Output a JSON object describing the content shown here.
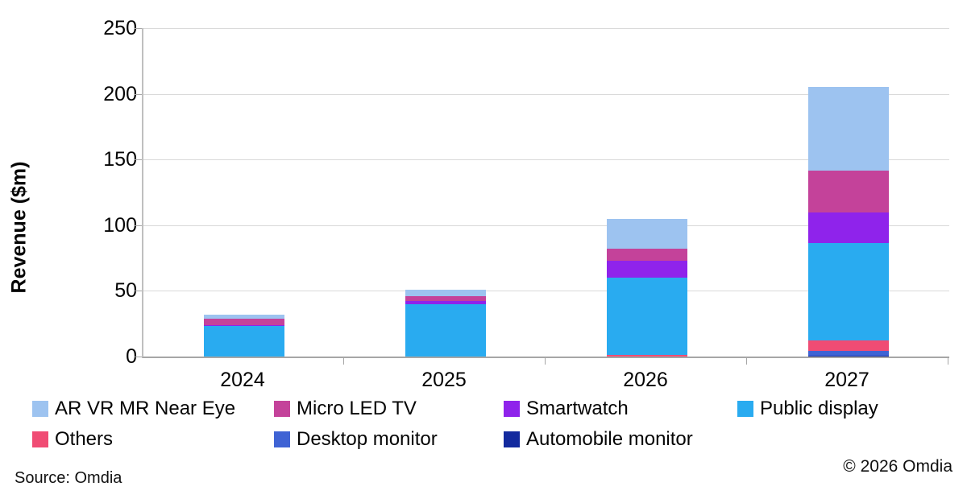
{
  "chart_data": {
    "type": "bar",
    "stacked": true,
    "title": "",
    "xlabel": "",
    "ylabel": "Revenue ($m)",
    "ylim": [
      0,
      250
    ],
    "yticks": [
      0,
      50,
      100,
      150,
      200,
      250
    ],
    "grid": "horizontal",
    "legend_position": "bottom",
    "categories": [
      "2024",
      "2025",
      "2026",
      "2027"
    ],
    "series": [
      {
        "name": "AR VR MR Near Eye",
        "color": "#9dc3f0",
        "values": [
          3,
          5,
          23,
          64
        ]
      },
      {
        "name": "Micro LED TV",
        "color": "#c4429a",
        "values": [
          5,
          4,
          9,
          32
        ]
      },
      {
        "name": "Smartwatch",
        "color": "#8f23eb",
        "values": [
          1,
          2,
          13,
          23
        ]
      },
      {
        "name": "Public display",
        "color": "#29abf0",
        "values": [
          23,
          40,
          59,
          74
        ]
      },
      {
        "name": "Others",
        "color": "#f04c74",
        "values": [
          0,
          0,
          1,
          8
        ]
      },
      {
        "name": "Desktop monitor",
        "color": "#3f63d4",
        "values": [
          0,
          0,
          0,
          4
        ]
      },
      {
        "name": "Automobile monitor",
        "color": "#132a9e",
        "values": [
          0,
          0,
          0,
          0.5
        ]
      }
    ],
    "stack_order_bottom_to_top": [
      "Automobile monitor",
      "Desktop monitor",
      "Others",
      "Public display",
      "Smartwatch",
      "Micro LED TV",
      "AR VR MR Near Eye"
    ],
    "totals": [
      32,
      51,
      105,
      205.5
    ]
  },
  "axis": {
    "y_title": "Revenue ($m)"
  },
  "footer": {
    "source": "Source: Omdia",
    "copyright": "© 2026 Omdia"
  },
  "colors": {
    "gridline": "#d9d9d9",
    "axis_line": "#a6a6a6",
    "text": "#050505",
    "background": "#ffffff"
  }
}
